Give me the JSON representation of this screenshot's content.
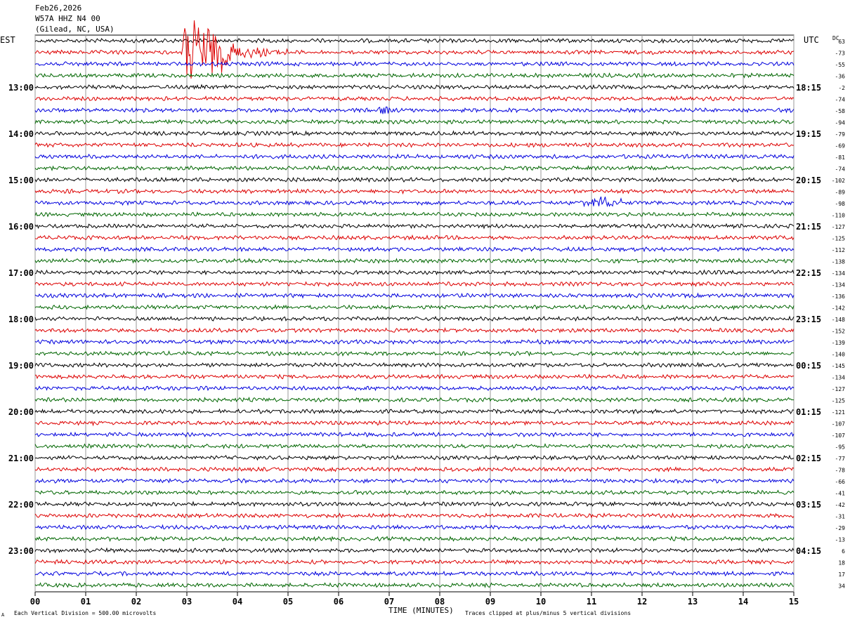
{
  "header": {
    "date": "Feb26,2026",
    "station": "W57A HHZ N4 00",
    "location": "(Gilead, NC, USA)"
  },
  "labels": {
    "left_tz": "EST",
    "right_tz": "UTC",
    "dc": "DC",
    "x_axis_title": "TIME (MINUTES)",
    "footer_left": "Each Vertical Division =  500.00 microvolts",
    "footer_right": "Traces clipped at plus/minus 5 vertical divisions",
    "footer_mark": "A"
  },
  "colors": {
    "trace_cycle": [
      "#000000",
      "#dd0000",
      "#0000dd",
      "#006600"
    ],
    "grid": "#999999"
  },
  "chart_data": {
    "type": "line",
    "title": "Feb26,2026 W57A HHZ N4 00 (Gilead, NC, USA)",
    "xlabel": "TIME (MINUTES)",
    "xlim": [
      0,
      15
    ],
    "x_ticks": [
      "00",
      "01",
      "02",
      "03",
      "04",
      "05",
      "06",
      "07",
      "08",
      "09",
      "10",
      "11",
      "12",
      "13",
      "14",
      "15"
    ],
    "left_hour_labels": [
      "13:00",
      "14:00",
      "15:00",
      "16:00",
      "17:00",
      "18:00",
      "19:00",
      "20:00",
      "21:00",
      "22:00",
      "23:00"
    ],
    "right_hour_labels": [
      "18:15",
      "19:15",
      "20:15",
      "21:15",
      "22:15",
      "23:15",
      "00:15",
      "01:15",
      "02:15",
      "03:15",
      "04:15"
    ],
    "trace_dc_offsets": [
      63,
      -73,
      -55,
      -36,
      -2,
      -74,
      -58,
      -94,
      -79,
      -69,
      -81,
      -74,
      -102,
      -89,
      -98,
      -110,
      -127,
      -125,
      -112,
      -138,
      -134,
      -134,
      -136,
      -142,
      -148,
      -152,
      -139,
      -140,
      -145,
      -134,
      -127,
      -125,
      -121,
      -107,
      -107,
      -95,
      -77,
      -78,
      -66,
      -41,
      -42,
      -31,
      -29,
      -13,
      6,
      18,
      17,
      34
    ],
    "events": [
      {
        "trace": 1,
        "start_min": 2.9,
        "end_min": 5.0,
        "note": "large earthquake signal, clipped"
      },
      {
        "trace": 6,
        "start_min": 6.7,
        "end_min": 7.1,
        "note": "small burst"
      },
      {
        "trace": 14,
        "start_min": 10.7,
        "end_min": 11.8,
        "note": "small burst"
      }
    ],
    "vertical_division_microvolts": 500.0
  }
}
